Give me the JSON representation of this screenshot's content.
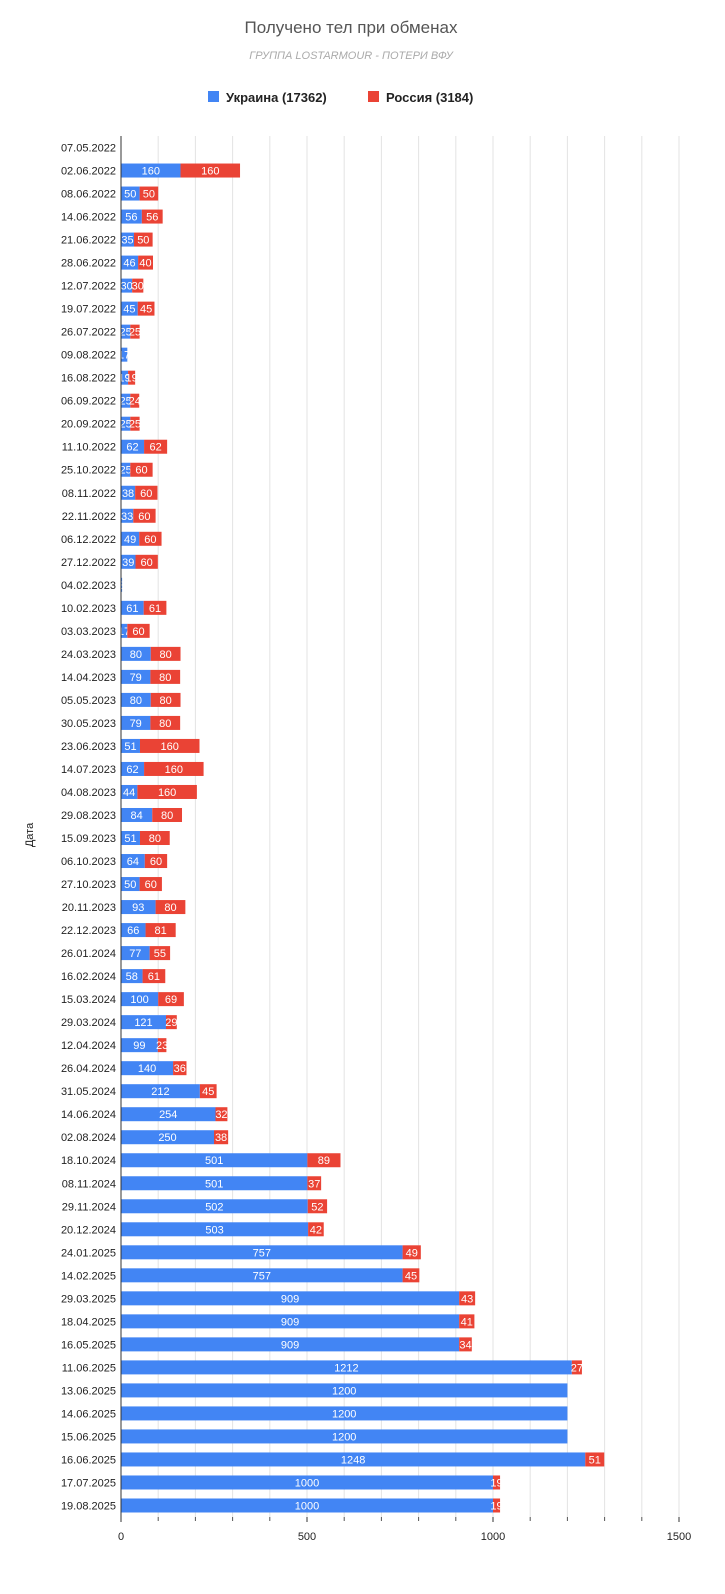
{
  "chart_data": {
    "type": "bar",
    "orientation": "horizontal",
    "stacked": true,
    "title": "Получено тел при обменах",
    "subtitle": "ГРУППА LOSTARMOUR - ПОТЕРИ ВФУ",
    "ylabel": "Дата",
    "xlabel": "",
    "xlim": [
      0,
      1500
    ],
    "xticks": [
      0,
      500,
      1000,
      1500
    ],
    "legend_position": "top",
    "categories": [
      "07.05.2022",
      "02.06.2022",
      "08.06.2022",
      "14.06.2022",
      "21.06.2022",
      "28.06.2022",
      "12.07.2022",
      "19.07.2022",
      "26.07.2022",
      "09.08.2022",
      "16.08.2022",
      "06.09.2022",
      "20.09.2022",
      "11.10.2022",
      "25.10.2022",
      "08.11.2022",
      "22.11.2022",
      "06.12.2022",
      "27.12.2022",
      "04.02.2023",
      "10.02.2023",
      "03.03.2023",
      "24.03.2023",
      "14.04.2023",
      "05.05.2023",
      "30.05.2023",
      "23.06.2023",
      "14.07.2023",
      "04.08.2023",
      "29.08.2023",
      "15.09.2023",
      "06.10.2023",
      "27.10.2023",
      "20.11.2023",
      "22.12.2023",
      "26.01.2024",
      "16.02.2024",
      "15.03.2024",
      "29.03.2024",
      "12.04.2024",
      "26.04.2024",
      "31.05.2024",
      "14.06.2024",
      "02.08.2024",
      "18.10.2024",
      "08.11.2024",
      "29.11.2024",
      "20.12.2024",
      "24.01.2025",
      "14.02.2025",
      "29.03.2025",
      "18.04.2025",
      "16.05.2025",
      "11.06.2025",
      "13.06.2025",
      "14.06.2025",
      "15.06.2025",
      "16.06.2025",
      "17.07.2025",
      "19.08.2025"
    ],
    "series": [
      {
        "name": "Украина (17362)",
        "color": "#4285f4",
        "values": [
          null,
          160,
          50,
          56,
          35,
          46,
          30,
          45,
          25,
          17,
          19,
          25,
          25,
          62,
          25,
          38,
          33,
          49,
          39,
          3,
          61,
          17,
          80,
          79,
          80,
          79,
          51,
          62,
          44,
          84,
          51,
          64,
          50,
          93,
          66,
          77,
          58,
          100,
          121,
          99,
          140,
          212,
          254,
          250,
          501,
          501,
          502,
          503,
          757,
          757,
          909,
          909,
          909,
          1212,
          1200,
          1200,
          1200,
          1248,
          1000,
          1000
        ]
      },
      {
        "name": "Россия (3184)",
        "color": "#ea4335",
        "values": [
          null,
          160,
          50,
          56,
          50,
          40,
          30,
          45,
          25,
          null,
          19,
          24,
          25,
          62,
          60,
          60,
          60,
          60,
          60,
          null,
          61,
          60,
          80,
          80,
          80,
          80,
          160,
          160,
          160,
          80,
          80,
          60,
          60,
          80,
          81,
          55,
          61,
          69,
          29,
          23,
          36,
          45,
          32,
          38,
          89,
          37,
          52,
          42,
          49,
          45,
          43,
          41,
          34,
          27,
          null,
          null,
          null,
          51,
          19,
          19
        ]
      }
    ]
  }
}
